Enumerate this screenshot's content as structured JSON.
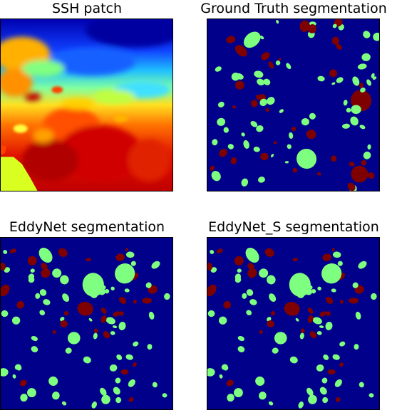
{
  "panels": [
    {
      "title": "SSH patch",
      "kind": "ssh-heatmap"
    },
    {
      "title": "Ground Truth segmentation",
      "kind": "segmentation-map"
    },
    {
      "title": "EddyNet segmentation",
      "kind": "segmentation-map"
    },
    {
      "title": "EddyNet_S segmentation",
      "kind": "segmentation-map"
    }
  ],
  "colors": {
    "background_class": "#00008b",
    "cyclonic_class": "#7fff7f",
    "anticyclonic_class": "#7f0000",
    "ssh_colormap": "jet"
  }
}
